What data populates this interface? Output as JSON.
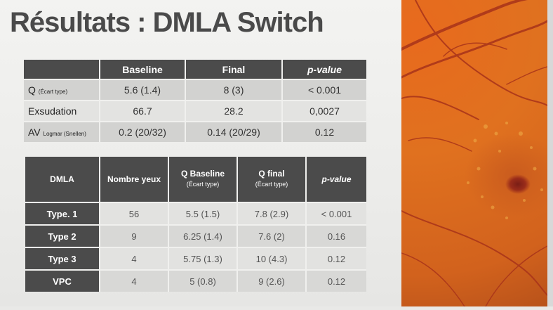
{
  "title": "Résultats : DMLA Switch",
  "table1": {
    "headers": [
      "",
      "Baseline",
      "Final",
      "p-value"
    ],
    "rows": [
      {
        "label": "Q",
        "label_small": "(Écart type)",
        "baseline": "5.6 (1.4)",
        "final": "8 (3)",
        "pvalue": "< 0.001"
      },
      {
        "label": "Exsudation",
        "label_small": "",
        "baseline": "66.7",
        "final": "28.2",
        "pvalue": "0,0027"
      },
      {
        "label": "AV",
        "label_small": "Logmar (Snellen)",
        "baseline": "0.2 (20/32)",
        "final": "0.14 (20/29)",
        "pvalue": "0.12"
      }
    ]
  },
  "table2": {
    "headers": {
      "dmla": "DMLA",
      "nombre": "Nombre yeux",
      "qbaseline": "Q Baseline",
      "qbaseline_sub": "(Écart type)",
      "qfinal": "Q final",
      "qfinal_sub": "(Écart type)",
      "pvalue": "p-value"
    },
    "rows": [
      {
        "label": "Type. 1",
        "nombre": "56",
        "qbaseline": "5.5 (1.5)",
        "qfinal": "7.8 (2.9)",
        "pvalue": "< 0.001"
      },
      {
        "label": "Type 2",
        "nombre": "9",
        "qbaseline": "6.25 (1.4)",
        "qfinal": "7.6 (2)",
        "pvalue": "0.16"
      },
      {
        "label": "Type 3",
        "nombre": "4",
        "qbaseline": "5.75 (1.3)",
        "qfinal": "10 (4.3)",
        "pvalue": "0.12"
      },
      {
        "label": "VPC",
        "nombre": "4",
        "qbaseline": "5 (0.8)",
        "qfinal": "9 (2.6)",
        "pvalue": "0.12"
      }
    ]
  },
  "colors": {
    "header": "#4b4b4b",
    "title": "#4a4a4a",
    "retina": "#e0711f"
  }
}
